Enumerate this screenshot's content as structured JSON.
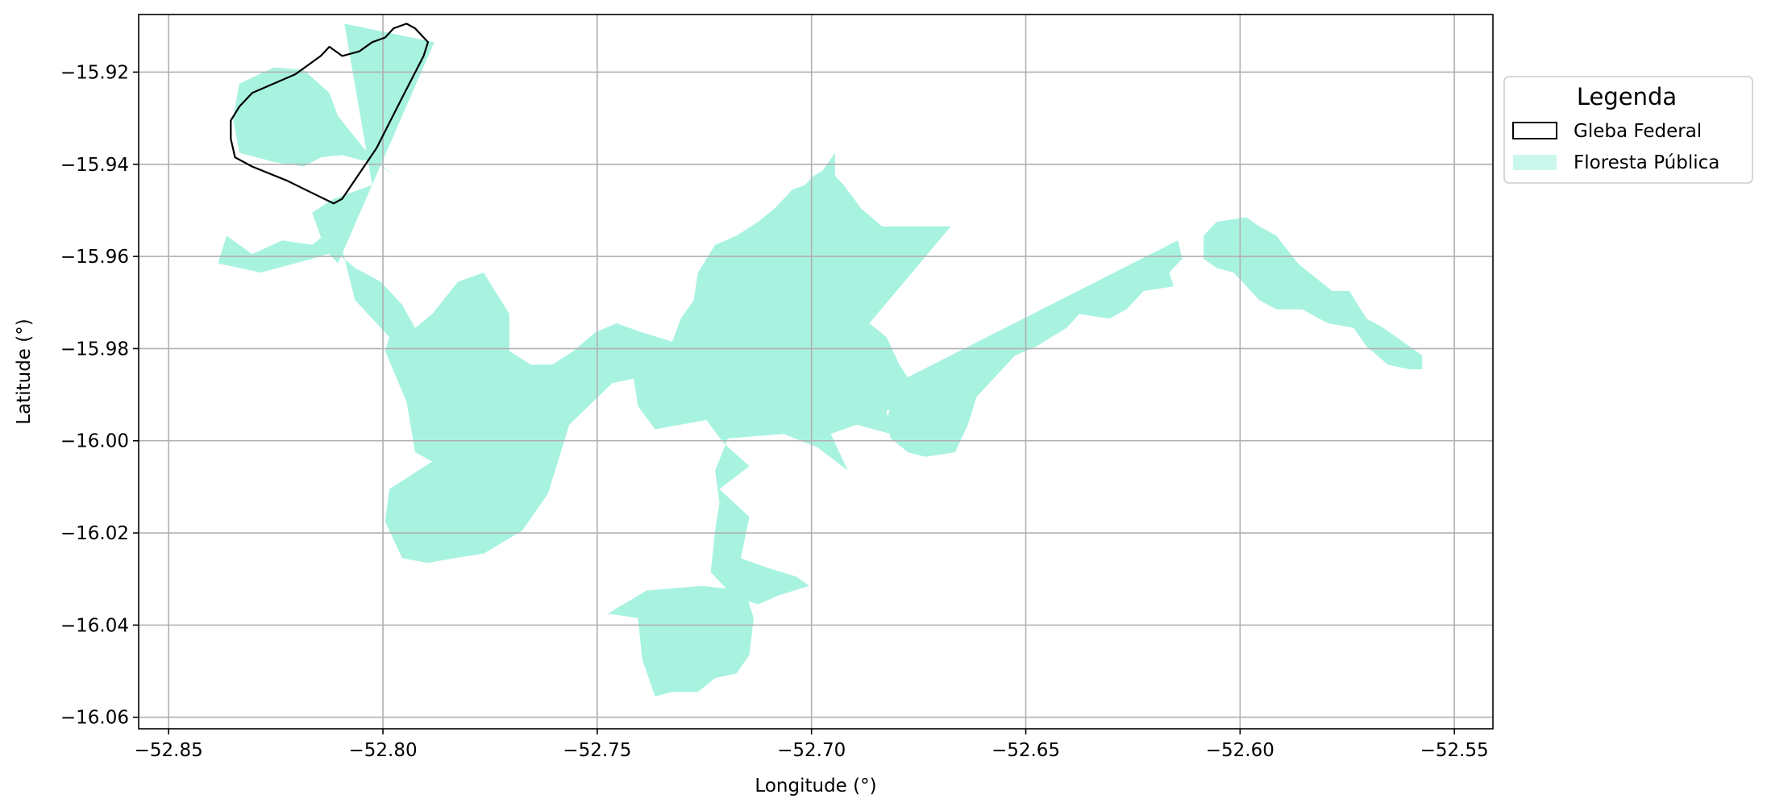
{
  "chart_data": {
    "type": "map",
    "title": "",
    "xlabel": "Longitude (°)",
    "ylabel": "Latitude (°)",
    "xlim": [
      -52.857,
      -52.541
    ],
    "ylim": [
      -16.0625,
      -15.9075
    ],
    "grid": true,
    "x_ticks": [
      {
        "value": -52.85,
        "label": "−52.85"
      },
      {
        "value": -52.8,
        "label": "−52.80"
      },
      {
        "value": -52.75,
        "label": "−52.75"
      },
      {
        "value": -52.7,
        "label": "−52.70"
      },
      {
        "value": -52.65,
        "label": "−52.65"
      },
      {
        "value": -52.6,
        "label": "−52.60"
      },
      {
        "value": -52.55,
        "label": "−52.55"
      }
    ],
    "y_ticks": [
      {
        "value": -15.92,
        "label": "−15.92"
      },
      {
        "value": -15.94,
        "label": "−15.94"
      },
      {
        "value": -15.96,
        "label": "−15.96"
      },
      {
        "value": -15.98,
        "label": "−15.98"
      },
      {
        "value": -16.0,
        "label": "−16.00"
      },
      {
        "value": -16.02,
        "label": "−16.02"
      },
      {
        "value": -16.04,
        "label": "−16.04"
      },
      {
        "value": -16.06,
        "label": "−16.06"
      }
    ],
    "legend": {
      "title": "Legenda",
      "placement": "outside-right-top",
      "entries": [
        {
          "label": "Gleba Federal",
          "style": "outline",
          "color": "#000000"
        },
        {
          "label": "Floresta Pública",
          "style": "fill",
          "color": "#a8f3e0"
        }
      ]
    },
    "layers": [
      {
        "name": "Floresta Pública",
        "fill": "#a8f3e0",
        "polygons": [
          {
            "name": "northwest-strip",
            "coords": [
              [
                -52.809,
                -15.9095
              ],
              [
                -52.788,
                -15.9135
              ],
              [
                -52.8105,
                -15.9615
              ],
              [
                -52.8135,
                -15.9585
              ],
              [
                -52.8165,
                -15.9505
              ],
              [
                -52.8115,
                -15.9475
              ],
              [
                -52.8025,
                -15.9445
              ]
            ]
          },
          {
            "name": "northwest-blob",
            "coords": [
              [
                -52.8335,
                -15.9225
              ],
              [
                -52.8255,
                -15.919
              ],
              [
                -52.8185,
                -15.9195
              ],
              [
                -52.8125,
                -15.9245
              ],
              [
                -52.8105,
                -15.9295
              ],
              [
                -52.8045,
                -15.9365
              ],
              [
                -52.7975,
                -15.9425
              ],
              [
                -52.8015,
                -15.9395
              ],
              [
                -52.8055,
                -15.939
              ],
              [
                -52.8095,
                -15.938
              ],
              [
                -52.8145,
                -15.9385
              ],
              [
                -52.8185,
                -15.9405
              ],
              [
                -52.8255,
                -15.9395
              ],
              [
                -52.8335,
                -15.9375
              ],
              [
                -52.835,
                -15.93
              ]
            ]
          },
          {
            "name": "west-main",
            "coords": [
              [
                -52.8385,
                -15.9615
              ],
              [
                -52.8285,
                -15.9635
              ],
              [
                -52.8165,
                -15.9605
              ],
              [
                -52.8095,
                -15.9585
              ],
              [
                -52.8065,
                -15.9695
              ],
              [
                -52.7985,
                -15.9775
              ],
              [
                -52.7995,
                -15.9805
              ],
              [
                -52.7945,
                -15.9915
              ],
              [
                -52.7925,
                -16.0025
              ],
              [
                -52.7885,
                -16.0045
              ],
              [
                -52.7985,
                -16.0105
              ],
              [
                -52.7995,
                -16.0175
              ],
              [
                -52.7955,
                -16.0255
              ],
              [
                -52.7895,
                -16.0265
              ],
              [
                -52.7835,
                -16.0255
              ],
              [
                -52.7765,
                -16.0245
              ],
              [
                -52.7675,
                -16.0195
              ],
              [
                -52.7615,
                -16.0115
              ],
              [
                -52.7565,
                -15.9965
              ],
              [
                -52.7465,
                -15.9875
              ],
              [
                -52.7415,
                -15.9865
              ],
              [
                -52.7405,
                -15.9925
              ],
              [
                -52.7365,
                -15.9975
              ],
              [
                -52.7245,
                -15.9955
              ],
              [
                -52.7205,
                -16.0005
              ],
              [
                -52.7145,
                -16.0055
              ],
              [
                -52.7215,
                -16.0105
              ],
              [
                -52.7145,
                -16.0165
              ],
              [
                -52.7165,
                -16.0255
              ],
              [
                -52.7105,
                -16.0275
              ],
              [
                -52.7035,
                -16.0295
              ],
              [
                -52.7005,
                -16.0315
              ],
              [
                -52.7075,
                -16.0335
              ],
              [
                -52.7125,
                -16.0355
              ],
              [
                -52.7185,
                -16.0335
              ],
              [
                -52.7235,
                -16.0285
              ],
              [
                -52.7225,
                -16.0195
              ],
              [
                -52.7215,
                -16.0135
              ],
              [
                -52.7225,
                -16.0065
              ],
              [
                -52.7195,
                -15.9995
              ],
              [
                -52.7065,
                -15.9985
              ],
              [
                -52.6985,
                -16.0015
              ],
              [
                -52.6915,
                -16.0065
              ],
              [
                -52.6955,
                -15.9985
              ],
              [
                -52.6895,
                -15.9965
              ],
              [
                -52.6815,
                -15.9985
              ],
              [
                -52.6825,
                -15.9935
              ],
              [
                -52.6745,
                -15.9905
              ],
              [
                -52.6795,
                -15.9835
              ],
              [
                -52.6825,
                -15.9775
              ],
              [
                -52.6865,
                -15.9745
              ],
              [
                -52.6675,
                -15.9535
              ],
              [
                -52.6835,
                -15.9535
              ],
              [
                -52.6885,
                -15.9495
              ],
              [
                -52.6925,
                -15.9445
              ],
              [
                -52.6945,
                -15.9425
              ],
              [
                -52.6945,
                -15.9375
              ],
              [
                -52.6975,
                -15.9415
              ],
              [
                -52.6995,
                -15.9425
              ],
              [
                -52.7015,
                -15.9445
              ],
              [
                -52.7045,
                -15.9455
              ],
              [
                -52.7085,
                -15.9495
              ],
              [
                -52.7125,
                -15.9525
              ],
              [
                -52.7175,
                -15.9555
              ],
              [
                -52.7225,
                -15.9575
              ],
              [
                -52.7265,
                -15.9635
              ],
              [
                -52.7275,
                -15.9695
              ],
              [
                -52.7305,
                -15.9735
              ],
              [
                -52.7325,
                -15.9785
              ],
              [
                -52.7395,
                -15.9765
              ],
              [
                -52.7455,
                -15.9745
              ],
              [
                -52.7505,
                -15.9765
              ],
              [
                -52.7555,
                -15.9805
              ],
              [
                -52.7605,
                -15.9835
              ],
              [
                -52.7655,
                -15.9835
              ],
              [
                -52.7705,
                -15.9805
              ],
              [
                -52.7705,
                -15.9725
              ],
              [
                -52.7765,
                -15.9635
              ],
              [
                -52.7825,
                -15.9655
              ],
              [
                -52.7885,
                -15.9725
              ],
              [
                -52.7925,
                -15.9755
              ],
              [
                -52.7955,
                -15.9705
              ],
              [
                -52.8005,
                -15.9655
              ],
              [
                -52.8065,
                -15.9625
              ],
              [
                -52.8105,
                -15.9595
              ],
              [
                -52.8125,
                -15.9545
              ],
              [
                -52.8165,
                -15.9575
              ],
              [
                -52.8235,
                -15.9565
              ],
              [
                -52.8305,
                -15.9595
              ],
              [
                -52.8365,
                -15.9555
              ]
            ]
          },
          {
            "name": "central-south",
            "coords": [
              [
                -52.7255,
                -16.0315
              ],
              [
                -52.7155,
                -16.0325
              ],
              [
                -52.7135,
                -16.0385
              ],
              [
                -52.7145,
                -16.0465
              ],
              [
                -52.7175,
                -16.0505
              ],
              [
                -52.7225,
                -16.0515
              ],
              [
                -52.7265,
                -16.0545
              ],
              [
                -52.7325,
                -16.0545
              ],
              [
                -52.7365,
                -16.0555
              ],
              [
                -52.7395,
                -16.0475
              ],
              [
                -52.7405,
                -16.0385
              ],
              [
                -52.7475,
                -16.0375
              ],
              [
                -52.7385,
                -16.0325
              ]
            ]
          },
          {
            "name": "diagonal-east",
            "coords": [
              [
                -52.6845,
                -15.9895
              ],
              [
                -52.6145,
                -15.9565
              ],
              [
                -52.6135,
                -15.9605
              ],
              [
                -52.6165,
                -15.9635
              ],
              [
                -52.6155,
                -15.9665
              ],
              [
                -52.6225,
                -15.9675
              ],
              [
                -52.6265,
                -15.9715
              ],
              [
                -52.6305,
                -15.9735
              ],
              [
                -52.6375,
                -15.9725
              ],
              [
                -52.6405,
                -15.9755
              ],
              [
                -52.6475,
                -15.9795
              ],
              [
                -52.6525,
                -15.9815
              ],
              [
                -52.6575,
                -15.9865
              ],
              [
                -52.6615,
                -15.9905
              ],
              [
                -52.6635,
                -15.9965
              ],
              [
                -52.6665,
                -16.0025
              ],
              [
                -52.6735,
                -16.0035
              ],
              [
                -52.6775,
                -16.0025
              ],
              [
                -52.6815,
                -15.9995
              ],
              [
                -52.6825,
                -15.9955
              ],
              [
                -52.6815,
                -15.9925
              ]
            ]
          },
          {
            "name": "far-east",
            "coords": [
              [
                -52.6085,
                -15.9555
              ],
              [
                -52.6055,
                -15.9525
              ],
              [
                -52.5985,
                -15.9515
              ],
              [
                -52.5955,
                -15.9535
              ],
              [
                -52.5915,
                -15.9555
              ],
              [
                -52.5865,
                -15.9615
              ],
              [
                -52.5785,
                -15.9675
              ],
              [
                -52.5745,
                -15.9675
              ],
              [
                -52.5705,
                -15.9735
              ],
              [
                -52.5665,
                -15.9755
              ],
              [
                -52.5575,
                -15.9815
              ],
              [
                -52.5575,
                -15.9845
              ],
              [
                -52.5605,
                -15.9845
              ],
              [
                -52.5655,
                -15.9835
              ],
              [
                -52.5705,
                -15.9795
              ],
              [
                -52.5735,
                -15.9755
              ],
              [
                -52.5795,
                -15.9745
              ],
              [
                -52.5855,
                -15.9715
              ],
              [
                -52.5915,
                -15.9715
              ],
              [
                -52.5955,
                -15.9695
              ],
              [
                -52.6015,
                -15.9635
              ],
              [
                -52.6055,
                -15.9625
              ],
              [
                -52.6085,
                -15.9605
              ]
            ]
          }
        ]
      },
      {
        "name": "Gleba Federal",
        "stroke": "#000000",
        "fill": "none",
        "polygons": [
          {
            "name": "gleba-outline",
            "coords": [
              [
                -52.7895,
                -15.9135
              ],
              [
                -52.7925,
                -15.9105
              ],
              [
                -52.7945,
                -15.9095
              ],
              [
                -52.7975,
                -15.9105
              ],
              [
                -52.7995,
                -15.9125
              ],
              [
                -52.8025,
                -15.9135
              ],
              [
                -52.8055,
                -15.9155
              ],
              [
                -52.8095,
                -15.9165
              ],
              [
                -52.8125,
                -15.9145
              ],
              [
                -52.8145,
                -15.9165
              ],
              [
                -52.8175,
                -15.9185
              ],
              [
                -52.8205,
                -15.9205
              ],
              [
                -52.8255,
                -15.9225
              ],
              [
                -52.8305,
                -15.9245
              ],
              [
                -52.8335,
                -15.9275
              ],
              [
                -52.8355,
                -15.9305
              ],
              [
                -52.8355,
                -15.9345
              ],
              [
                -52.8345,
                -15.9385
              ],
              [
                -52.8305,
                -15.9405
              ],
              [
                -52.8225,
                -15.9435
              ],
              [
                -52.8115,
                -15.9485
              ],
              [
                -52.8095,
                -15.9475
              ],
              [
                -52.8015,
                -15.9365
              ],
              [
                -52.7955,
                -15.9255
              ],
              [
                -52.7905,
                -15.9165
              ]
            ]
          }
        ]
      }
    ]
  }
}
